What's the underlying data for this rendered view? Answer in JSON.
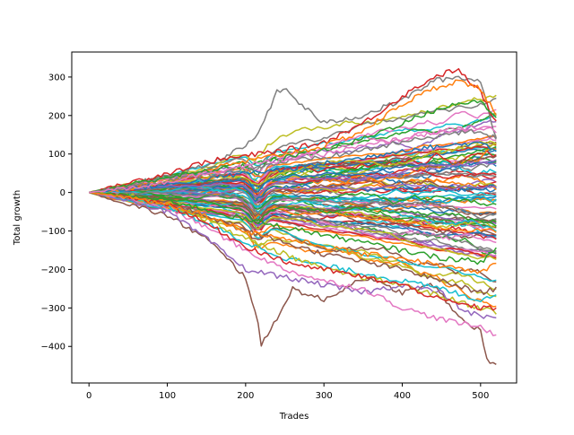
{
  "chart_data": {
    "type": "line",
    "title": "",
    "xlabel": "Trades",
    "ylabel": "Total growth",
    "xlim": [
      -22,
      546
    ],
    "ylim": [
      -495,
      365
    ],
    "x_ticks": [
      0,
      100,
      200,
      300,
      400,
      500
    ],
    "y_ticks": [
      -400,
      -300,
      -200,
      -100,
      0,
      100,
      200,
      300
    ],
    "x_tick_labels": [
      "0",
      "100",
      "200",
      "300",
      "400",
      "500"
    ],
    "y_tick_labels": [
      "−400",
      "−300",
      "−200",
      "−100",
      "0",
      "100",
      "200",
      "300"
    ],
    "grid": false,
    "legend": "none",
    "colors": [
      "#1f77b4",
      "#ff7f0e",
      "#2ca02c",
      "#d62728",
      "#9467bd",
      "#8c564b",
      "#e377c2",
      "#7f7f7f",
      "#bcbd22",
      "#17becf"
    ],
    "x_range": [
      0,
      520
    ],
    "series_note": "approximately 100 random-walk series, each spanning trades 0 to 520",
    "series": [
      {
        "color": "#8c564b",
        "x": [
          0,
          50,
          100,
          150,
          200,
          215,
          220,
          260,
          300,
          350,
          400,
          440,
          470,
          500,
          510,
          520
        ],
        "y": [
          0,
          -30,
          -60,
          -120,
          -220,
          -330,
          -400,
          -250,
          -280,
          -220,
          -260,
          -240,
          -320,
          -360,
          -450,
          -440
        ]
      },
      {
        "color": "#7f7f7f",
        "x": [
          0,
          50,
          100,
          150,
          200,
          215,
          240,
          250,
          270,
          300,
          350,
          400,
          440,
          470,
          500,
          520
        ],
        "y": [
          0,
          20,
          40,
          70,
          120,
          150,
          260,
          270,
          230,
          180,
          200,
          240,
          290,
          300,
          290,
          140
        ]
      },
      {
        "color": "#d62728",
        "x": [
          0,
          50,
          100,
          150,
          200,
          250,
          300,
          350,
          400,
          440,
          470,
          500,
          520
        ],
        "y": [
          0,
          25,
          50,
          80,
          95,
          110,
          130,
          180,
          250,
          300,
          320,
          260,
          180
        ]
      },
      {
        "color": "#ff7f0e",
        "x": [
          0,
          50,
          100,
          150,
          200,
          250,
          300,
          350,
          400,
          440,
          470,
          500,
          520
        ],
        "y": [
          0,
          10,
          30,
          60,
          80,
          100,
          120,
          160,
          230,
          270,
          290,
          270,
          200
        ]
      },
      {
        "color": "#9467bd",
        "x": [
          0,
          50,
          100,
          150,
          200,
          250,
          300,
          350,
          400,
          450,
          480,
          500,
          520
        ],
        "y": [
          0,
          -20,
          -50,
          -120,
          -200,
          -220,
          -240,
          -260,
          -240,
          -260,
          -310,
          -320,
          -330
        ]
      },
      {
        "color": "#e377c2",
        "x": [
          0,
          50,
          100,
          150,
          200,
          250,
          300,
          350,
          400,
          450,
          500,
          520
        ],
        "y": [
          0,
          -15,
          -40,
          -90,
          -150,
          -200,
          -230,
          -250,
          -300,
          -330,
          -350,
          -370
        ]
      },
      {
        "color": "#17becf",
        "x": [
          0,
          50,
          100,
          150,
          200,
          250,
          300,
          350,
          400,
          450,
          500,
          520
        ],
        "y": [
          0,
          -10,
          -35,
          -80,
          -130,
          -170,
          -190,
          -210,
          -230,
          -250,
          -280,
          -260
        ]
      },
      {
        "color": "#bcbd22",
        "x": [
          0,
          50,
          100,
          150,
          200,
          250,
          300,
          350,
          400,
          450,
          500,
          520
        ],
        "y": [
          0,
          -5,
          -30,
          -70,
          -120,
          -160,
          -200,
          -220,
          -240,
          -270,
          -300,
          -310
        ]
      },
      {
        "color": "#2ca02c",
        "x": [
          0,
          50,
          100,
          150,
          200,
          250,
          300,
          350,
          400,
          450,
          500,
          520
        ],
        "y": [
          0,
          20,
          40,
          55,
          70,
          90,
          110,
          140,
          180,
          220,
          240,
          190
        ]
      },
      {
        "color": "#1f77b4",
        "x": [
          0,
          50,
          100,
          150,
          200,
          250,
          300,
          350,
          400,
          450,
          500,
          520
        ],
        "y": [
          0,
          10,
          20,
          35,
          50,
          60,
          75,
          90,
          110,
          120,
          130,
          110
        ]
      },
      {
        "color": "#8c564b",
        "x": [
          0,
          50,
          100,
          150,
          200,
          250,
          300,
          350,
          400,
          450,
          500,
          520
        ],
        "y": [
          0,
          -10,
          -25,
          -60,
          -100,
          -130,
          -160,
          -180,
          -200,
          -230,
          -260,
          -250
        ]
      },
      {
        "color": "#d62728",
        "x": [
          0,
          50,
          100,
          150,
          200,
          250,
          300,
          350,
          400,
          450,
          500,
          520
        ],
        "y": [
          0,
          -10,
          -30,
          -80,
          -140,
          -180,
          -200,
          -220,
          -240,
          -280,
          -300,
          -300
        ]
      },
      {
        "color": "#2ca02c",
        "x": [
          0,
          50,
          100,
          150,
          200,
          250,
          300,
          350,
          400,
          450,
          500,
          520
        ],
        "y": [
          0,
          -8,
          -20,
          -45,
          -70,
          -90,
          -110,
          -130,
          -150,
          -170,
          -180,
          -150
        ]
      },
      {
        "color": "#ff7f0e",
        "x": [
          0,
          50,
          100,
          150,
          200,
          250,
          300,
          350,
          400,
          450,
          500,
          520
        ],
        "y": [
          0,
          -12,
          -30,
          -60,
          -100,
          -120,
          -140,
          -160,
          -170,
          -190,
          -210,
          -180
        ]
      },
      {
        "color": "#7f7f7f",
        "x": [
          0,
          50,
          100,
          150,
          200,
          250,
          300,
          350,
          400,
          450,
          500,
          520
        ],
        "y": [
          0,
          15,
          30,
          45,
          60,
          80,
          90,
          110,
          130,
          150,
          160,
          140
        ]
      },
      {
        "color": "#e377c2",
        "x": [
          0,
          50,
          100,
          150,
          200,
          250,
          300,
          350,
          400,
          450,
          500,
          520
        ],
        "y": [
          0,
          12,
          28,
          50,
          70,
          85,
          100,
          120,
          140,
          160,
          170,
          160
        ]
      }
    ]
  }
}
